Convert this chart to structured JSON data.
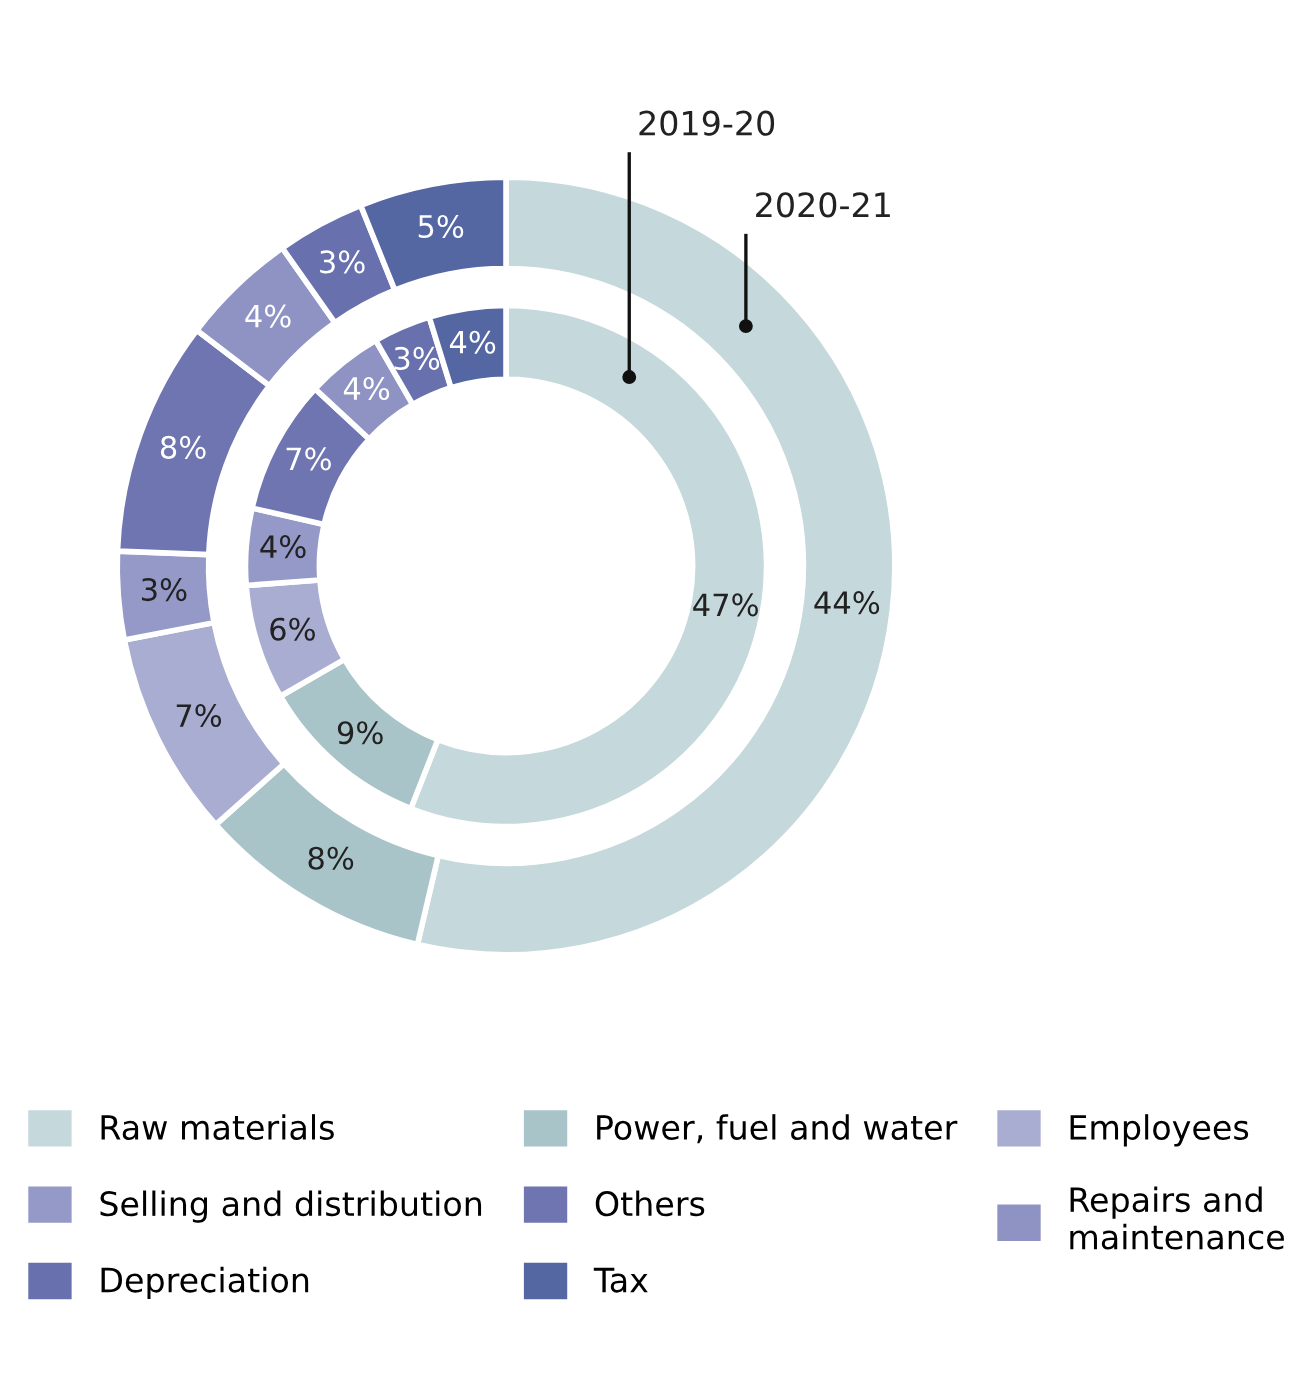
{
  "chart_data": {
    "type": "donut",
    "categories": [
      "Raw materials",
      "Power, fuel and water",
      "Employees",
      "Selling and distribution",
      "Others",
      "Repairs and\nmaintenance",
      "Depreciation",
      "Tax"
    ],
    "colors": [
      "#c5d8dc",
      "#a9c4c9",
      "#a9add1",
      "#9599c8",
      "#6e75b0",
      "#8e93c3",
      "#6870ae",
      "#5567a3"
    ],
    "series": [
      {
        "name": "2019-20",
        "values": [
          47,
          9,
          6,
          4,
          7,
          4,
          3,
          4
        ],
        "value_labels": [
          "47%",
          "9%",
          "6%",
          "4%",
          "7%",
          "4%",
          "3%",
          "4%"
        ]
      },
      {
        "name": "2020-21",
        "values": [
          44,
          8,
          7,
          3,
          8,
          4,
          3,
          5
        ],
        "value_labels": [
          "44%",
          "8%",
          "7%",
          "3%",
          "8%",
          "4%",
          "3%",
          "5%"
        ]
      }
    ],
    "legend": "bottom"
  }
}
